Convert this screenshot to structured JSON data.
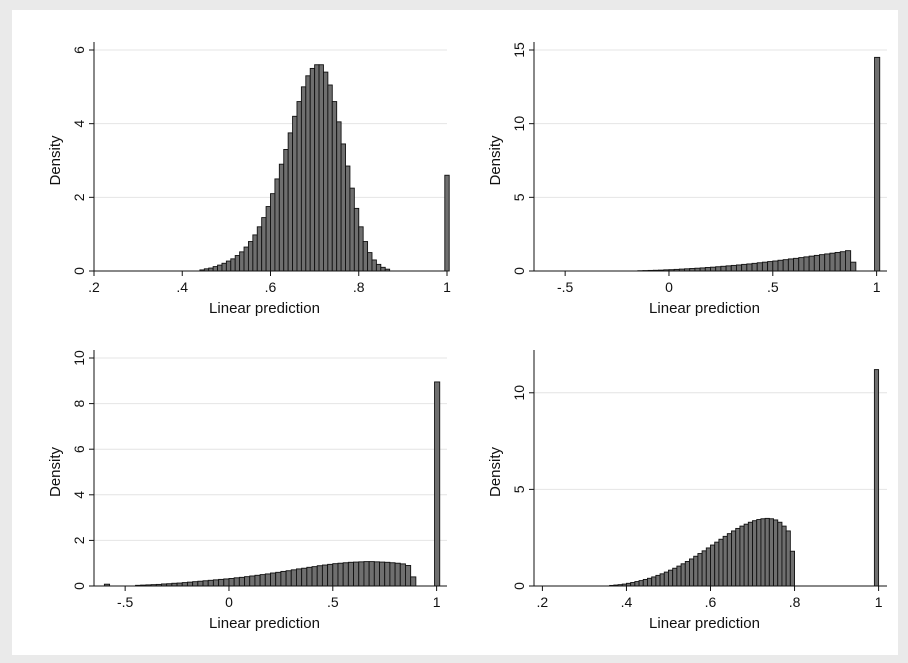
{
  "chart_data": [
    {
      "type": "bar",
      "title": "",
      "xlabel": "Linear prediction",
      "ylabel": "Density",
      "xlim": [
        0.2,
        1.0
      ],
      "ylim": [
        0,
        6
      ],
      "xticks": [
        0.2,
        0.4,
        0.6,
        0.8,
        1
      ],
      "xtick_labels": [
        ".2",
        ".4",
        ".6",
        ".8",
        "1"
      ],
      "yticks": [
        0,
        2,
        4,
        6
      ],
      "ytick_labels": [
        "0",
        "2",
        "4",
        "6"
      ],
      "bin_width": 0.01,
      "bins": [
        {
          "x": 0.44,
          "y": 0.03
        },
        {
          "x": 0.45,
          "y": 0.06
        },
        {
          "x": 0.46,
          "y": 0.08
        },
        {
          "x": 0.47,
          "y": 0.12
        },
        {
          "x": 0.48,
          "y": 0.16
        },
        {
          "x": 0.49,
          "y": 0.21
        },
        {
          "x": 0.5,
          "y": 0.27
        },
        {
          "x": 0.51,
          "y": 0.33
        },
        {
          "x": 0.52,
          "y": 0.42
        },
        {
          "x": 0.53,
          "y": 0.52
        },
        {
          "x": 0.54,
          "y": 0.65
        },
        {
          "x": 0.55,
          "y": 0.8
        },
        {
          "x": 0.56,
          "y": 0.98
        },
        {
          "x": 0.57,
          "y": 1.2
        },
        {
          "x": 0.58,
          "y": 1.45
        },
        {
          "x": 0.59,
          "y": 1.75
        },
        {
          "x": 0.6,
          "y": 2.1
        },
        {
          "x": 0.61,
          "y": 2.5
        },
        {
          "x": 0.62,
          "y": 2.9
        },
        {
          "x": 0.63,
          "y": 3.3
        },
        {
          "x": 0.64,
          "y": 3.75
        },
        {
          "x": 0.65,
          "y": 4.2
        },
        {
          "x": 0.66,
          "y": 4.6
        },
        {
          "x": 0.67,
          "y": 5.0
        },
        {
          "x": 0.68,
          "y": 5.3
        },
        {
          "x": 0.69,
          "y": 5.5
        },
        {
          "x": 0.7,
          "y": 5.6
        },
        {
          "x": 0.71,
          "y": 5.6
        },
        {
          "x": 0.72,
          "y": 5.4
        },
        {
          "x": 0.73,
          "y": 5.05
        },
        {
          "x": 0.74,
          "y": 4.6
        },
        {
          "x": 0.75,
          "y": 4.05
        },
        {
          "x": 0.76,
          "y": 3.45
        },
        {
          "x": 0.77,
          "y": 2.85
        },
        {
          "x": 0.78,
          "y": 2.25
        },
        {
          "x": 0.79,
          "y": 1.7
        },
        {
          "x": 0.8,
          "y": 1.2
        },
        {
          "x": 0.81,
          "y": 0.8
        },
        {
          "x": 0.82,
          "y": 0.5
        },
        {
          "x": 0.83,
          "y": 0.3
        },
        {
          "x": 0.84,
          "y": 0.18
        },
        {
          "x": 0.85,
          "y": 0.1
        },
        {
          "x": 0.86,
          "y": 0.05
        },
        {
          "x": 0.995,
          "y": 2.6
        }
      ]
    },
    {
      "type": "bar",
      "title": "",
      "xlabel": "Linear prediction",
      "ylabel": "Density",
      "xlim": [
        -0.65,
        1.05
      ],
      "ylim": [
        0,
        15
      ],
      "xticks": [
        -0.5,
        0,
        0.5,
        1
      ],
      "xtick_labels": [
        "-.5",
        "0",
        ".5",
        "1"
      ],
      "yticks": [
        0,
        5,
        10,
        15
      ],
      "ytick_labels": [
        "0",
        "5",
        "10",
        "15"
      ],
      "bin_width": 0.025,
      "bins": [
        {
          "x": -0.15,
          "y": 0.02
        },
        {
          "x": -0.125,
          "y": 0.03
        },
        {
          "x": -0.1,
          "y": 0.04
        },
        {
          "x": -0.075,
          "y": 0.05
        },
        {
          "x": -0.05,
          "y": 0.06
        },
        {
          "x": -0.025,
          "y": 0.08
        },
        {
          "x": 0.0,
          "y": 0.09
        },
        {
          "x": 0.025,
          "y": 0.11
        },
        {
          "x": 0.05,
          "y": 0.13
        },
        {
          "x": 0.075,
          "y": 0.15
        },
        {
          "x": 0.1,
          "y": 0.17
        },
        {
          "x": 0.125,
          "y": 0.19
        },
        {
          "x": 0.15,
          "y": 0.21
        },
        {
          "x": 0.175,
          "y": 0.24
        },
        {
          "x": 0.2,
          "y": 0.26
        },
        {
          "x": 0.225,
          "y": 0.29
        },
        {
          "x": 0.25,
          "y": 0.32
        },
        {
          "x": 0.275,
          "y": 0.35
        },
        {
          "x": 0.3,
          "y": 0.38
        },
        {
          "x": 0.325,
          "y": 0.41
        },
        {
          "x": 0.35,
          "y": 0.45
        },
        {
          "x": 0.375,
          "y": 0.48
        },
        {
          "x": 0.4,
          "y": 0.52
        },
        {
          "x": 0.425,
          "y": 0.56
        },
        {
          "x": 0.45,
          "y": 0.6
        },
        {
          "x": 0.475,
          "y": 0.64
        },
        {
          "x": 0.5,
          "y": 0.68
        },
        {
          "x": 0.525,
          "y": 0.73
        },
        {
          "x": 0.55,
          "y": 0.77
        },
        {
          "x": 0.575,
          "y": 0.82
        },
        {
          "x": 0.6,
          "y": 0.86
        },
        {
          "x": 0.625,
          "y": 0.91
        },
        {
          "x": 0.65,
          "y": 0.96
        },
        {
          "x": 0.675,
          "y": 1.01
        },
        {
          "x": 0.7,
          "y": 1.06
        },
        {
          "x": 0.725,
          "y": 1.11
        },
        {
          "x": 0.75,
          "y": 1.16
        },
        {
          "x": 0.775,
          "y": 1.21
        },
        {
          "x": 0.8,
          "y": 1.26
        },
        {
          "x": 0.825,
          "y": 1.31
        },
        {
          "x": 0.85,
          "y": 1.38
        },
        {
          "x": 0.875,
          "y": 0.6
        },
        {
          "x": 0.99,
          "y": 14.5
        }
      ]
    },
    {
      "type": "bar",
      "title": "",
      "xlabel": "Linear prediction",
      "ylabel": "Density",
      "xlim": [
        -0.65,
        1.05
      ],
      "ylim": [
        0,
        10
      ],
      "xticks": [
        -0.5,
        0,
        0.5,
        1
      ],
      "xtick_labels": [
        "-.5",
        "0",
        ".5",
        "1"
      ],
      "yticks": [
        0,
        2,
        4,
        6,
        8,
        10
      ],
      "ytick_labels": [
        "0",
        "2",
        "4",
        "6",
        "8",
        "10"
      ],
      "bin_width": 0.025,
      "bins": [
        {
          "x": -0.6,
          "y": 0.08
        },
        {
          "x": -0.45,
          "y": 0.03
        },
        {
          "x": -0.425,
          "y": 0.04
        },
        {
          "x": -0.4,
          "y": 0.05
        },
        {
          "x": -0.375,
          "y": 0.06
        },
        {
          "x": -0.35,
          "y": 0.07
        },
        {
          "x": -0.325,
          "y": 0.09
        },
        {
          "x": -0.3,
          "y": 0.1
        },
        {
          "x": -0.275,
          "y": 0.12
        },
        {
          "x": -0.25,
          "y": 0.13
        },
        {
          "x": -0.225,
          "y": 0.15
        },
        {
          "x": -0.2,
          "y": 0.17
        },
        {
          "x": -0.175,
          "y": 0.19
        },
        {
          "x": -0.15,
          "y": 0.21
        },
        {
          "x": -0.125,
          "y": 0.23
        },
        {
          "x": -0.1,
          "y": 0.25
        },
        {
          "x": -0.075,
          "y": 0.27
        },
        {
          "x": -0.05,
          "y": 0.29
        },
        {
          "x": -0.025,
          "y": 0.31
        },
        {
          "x": 0.0,
          "y": 0.33
        },
        {
          "x": 0.025,
          "y": 0.36
        },
        {
          "x": 0.05,
          "y": 0.38
        },
        {
          "x": 0.075,
          "y": 0.41
        },
        {
          "x": 0.1,
          "y": 0.44
        },
        {
          "x": 0.125,
          "y": 0.47
        },
        {
          "x": 0.15,
          "y": 0.5
        },
        {
          "x": 0.175,
          "y": 0.53
        },
        {
          "x": 0.2,
          "y": 0.57
        },
        {
          "x": 0.225,
          "y": 0.6
        },
        {
          "x": 0.25,
          "y": 0.64
        },
        {
          "x": 0.275,
          "y": 0.67
        },
        {
          "x": 0.3,
          "y": 0.71
        },
        {
          "x": 0.325,
          "y": 0.75
        },
        {
          "x": 0.35,
          "y": 0.78
        },
        {
          "x": 0.375,
          "y": 0.82
        },
        {
          "x": 0.4,
          "y": 0.85
        },
        {
          "x": 0.425,
          "y": 0.89
        },
        {
          "x": 0.45,
          "y": 0.92
        },
        {
          "x": 0.475,
          "y": 0.95
        },
        {
          "x": 0.5,
          "y": 0.98
        },
        {
          "x": 0.525,
          "y": 1.0
        },
        {
          "x": 0.55,
          "y": 1.02
        },
        {
          "x": 0.575,
          "y": 1.04
        },
        {
          "x": 0.6,
          "y": 1.05
        },
        {
          "x": 0.625,
          "y": 1.06
        },
        {
          "x": 0.65,
          "y": 1.07
        },
        {
          "x": 0.675,
          "y": 1.07
        },
        {
          "x": 0.7,
          "y": 1.06
        },
        {
          "x": 0.725,
          "y": 1.05
        },
        {
          "x": 0.75,
          "y": 1.04
        },
        {
          "x": 0.775,
          "y": 1.02
        },
        {
          "x": 0.8,
          "y": 1.0
        },
        {
          "x": 0.825,
          "y": 0.97
        },
        {
          "x": 0.85,
          "y": 0.9
        },
        {
          "x": 0.875,
          "y": 0.4
        },
        {
          "x": 0.99,
          "y": 8.95
        }
      ]
    },
    {
      "type": "bar",
      "title": "",
      "xlabel": "Linear prediction",
      "ylabel": "Density",
      "xlim": [
        0.18,
        1.02
      ],
      "ylim": [
        0,
        11.8
      ],
      "xticks": [
        0.2,
        0.4,
        0.6,
        0.8,
        1
      ],
      "xtick_labels": [
        ".2",
        ".4",
        ".6",
        ".8",
        "1"
      ],
      "yticks": [
        0,
        5,
        10
      ],
      "ytick_labels": [
        "0",
        "5",
        "10"
      ],
      "bin_width": 0.01,
      "bins": [
        {
          "x": 0.36,
          "y": 0.03
        },
        {
          "x": 0.37,
          "y": 0.05
        },
        {
          "x": 0.38,
          "y": 0.07
        },
        {
          "x": 0.39,
          "y": 0.1
        },
        {
          "x": 0.4,
          "y": 0.14
        },
        {
          "x": 0.41,
          "y": 0.18
        },
        {
          "x": 0.42,
          "y": 0.23
        },
        {
          "x": 0.43,
          "y": 0.28
        },
        {
          "x": 0.44,
          "y": 0.34
        },
        {
          "x": 0.45,
          "y": 0.4
        },
        {
          "x": 0.46,
          "y": 0.47
        },
        {
          "x": 0.47,
          "y": 0.55
        },
        {
          "x": 0.48,
          "y": 0.63
        },
        {
          "x": 0.49,
          "y": 0.72
        },
        {
          "x": 0.5,
          "y": 0.82
        },
        {
          "x": 0.51,
          "y": 0.92
        },
        {
          "x": 0.52,
          "y": 1.03
        },
        {
          "x": 0.53,
          "y": 1.15
        },
        {
          "x": 0.54,
          "y": 1.27
        },
        {
          "x": 0.55,
          "y": 1.4
        },
        {
          "x": 0.56,
          "y": 1.54
        },
        {
          "x": 0.57,
          "y": 1.68
        },
        {
          "x": 0.58,
          "y": 1.82
        },
        {
          "x": 0.59,
          "y": 1.97
        },
        {
          "x": 0.6,
          "y": 2.12
        },
        {
          "x": 0.61,
          "y": 2.27
        },
        {
          "x": 0.62,
          "y": 2.42
        },
        {
          "x": 0.63,
          "y": 2.57
        },
        {
          "x": 0.64,
          "y": 2.71
        },
        {
          "x": 0.65,
          "y": 2.85
        },
        {
          "x": 0.66,
          "y": 2.98
        },
        {
          "x": 0.67,
          "y": 3.1
        },
        {
          "x": 0.68,
          "y": 3.2
        },
        {
          "x": 0.69,
          "y": 3.3
        },
        {
          "x": 0.7,
          "y": 3.38
        },
        {
          "x": 0.71,
          "y": 3.44
        },
        {
          "x": 0.72,
          "y": 3.48
        },
        {
          "x": 0.73,
          "y": 3.5
        },
        {
          "x": 0.74,
          "y": 3.48
        },
        {
          "x": 0.75,
          "y": 3.42
        },
        {
          "x": 0.76,
          "y": 3.3
        },
        {
          "x": 0.77,
          "y": 3.1
        },
        {
          "x": 0.78,
          "y": 2.85
        },
        {
          "x": 0.79,
          "y": 1.8
        },
        {
          "x": 0.99,
          "y": 11.2
        }
      ]
    }
  ]
}
